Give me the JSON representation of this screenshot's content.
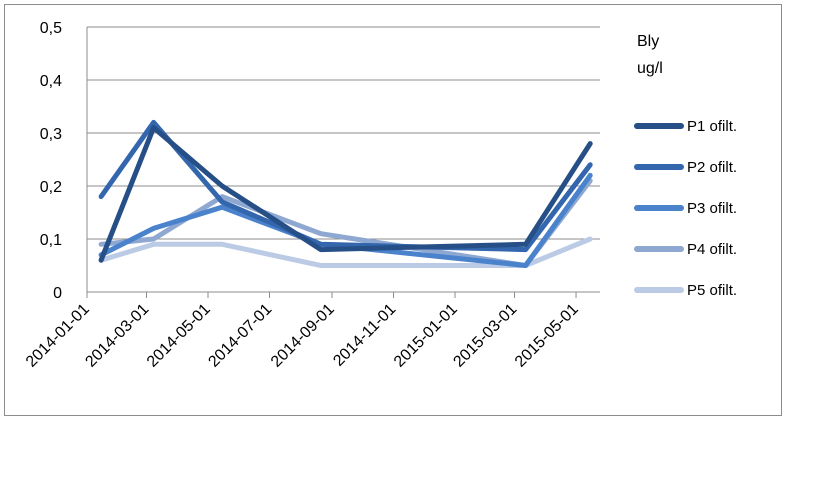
{
  "chart_data": {
    "type": "line",
    "title": "Bly",
    "unit": "ug/l",
    "x": [
      "2014-01-15",
      "2014-03-08",
      "2014-05-15",
      "2014-08-21",
      "2015-03-12",
      "2015-05-15"
    ],
    "x_ticks": [
      "2014-01-01",
      "2014-03-01",
      "2014-05-01",
      "2014-07-01",
      "2014-09-01",
      "2014-11-01",
      "2015-01-01",
      "2015-03-01",
      "2015-05-01"
    ],
    "y_ticks": [
      "0",
      "0,1",
      "0,2",
      "0,3",
      "0,4",
      "0,5"
    ],
    "ylim": [
      0,
      0.5
    ],
    "grid": true,
    "legend_position": "right",
    "series": [
      {
        "name": "P1 ofilt.",
        "color": "#254f86",
        "values": [
          0.06,
          0.31,
          0.2,
          0.08,
          0.09,
          0.28
        ]
      },
      {
        "name": "P2 ofilt.",
        "color": "#3366ad",
        "values": [
          0.18,
          0.32,
          0.17,
          0.09,
          0.08,
          0.24
        ]
      },
      {
        "name": "P3 ofilt.",
        "color": "#4a82cc",
        "values": [
          0.07,
          0.12,
          0.16,
          0.09,
          0.05,
          0.22
        ]
      },
      {
        "name": "P4 ofilt.",
        "color": "#8ea8d2",
        "values": [
          0.09,
          0.1,
          0.18,
          0.11,
          0.05,
          0.21
        ]
      },
      {
        "name": "P5 ofilt.",
        "color": "#bccbe5",
        "values": [
          0.06,
          0.09,
          0.09,
          0.05,
          0.05,
          0.1
        ]
      }
    ]
  }
}
